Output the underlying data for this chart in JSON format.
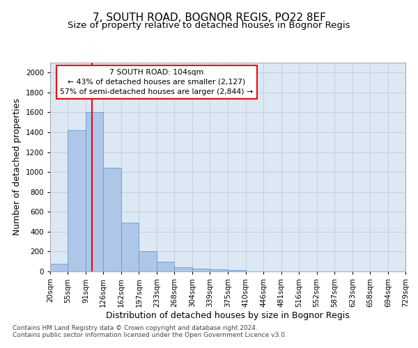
{
  "title1": "7, SOUTH ROAD, BOGNOR REGIS, PO22 8EF",
  "title2": "Size of property relative to detached houses in Bognor Regis",
  "xlabel": "Distribution of detached houses by size in Bognor Regis",
  "ylabel": "Number of detached properties",
  "footnote1": "Contains HM Land Registry data © Crown copyright and database right 2024.",
  "footnote2": "Contains public sector information licensed under the Open Government Licence v3.0.",
  "annotation_title": "7 SOUTH ROAD: 104sqm",
  "annotation_line2": "← 43% of detached houses are smaller (2,127)",
  "annotation_line3": "57% of semi-detached houses are larger (2,844) →",
  "red_line_x": 104,
  "bar_edges": [
    20,
    55,
    91,
    126,
    162,
    197,
    233,
    268,
    304,
    339,
    375,
    410,
    446,
    481,
    516,
    552,
    587,
    623,
    658,
    694,
    729
  ],
  "bar_heights": [
    80,
    1420,
    1600,
    1040,
    490,
    200,
    100,
    40,
    25,
    20,
    15,
    0,
    0,
    0,
    0,
    0,
    0,
    0,
    0,
    0
  ],
  "bar_color": "#aec6e8",
  "bar_edge_color": "#5a9fd4",
  "red_line_color": "#ff0000",
  "background_color": "#ffffff",
  "axes_bg_color": "#dce9f5",
  "grid_color": "#c0c8d8",
  "ylim": [
    0,
    2100
  ],
  "yticks": [
    0,
    200,
    400,
    600,
    800,
    1000,
    1200,
    1400,
    1600,
    1800,
    2000
  ],
  "title1_fontsize": 11,
  "title2_fontsize": 9.5,
  "xlabel_fontsize": 9,
  "ylabel_fontsize": 9,
  "tick_fontsize": 7.5,
  "footnote_fontsize": 6.5
}
